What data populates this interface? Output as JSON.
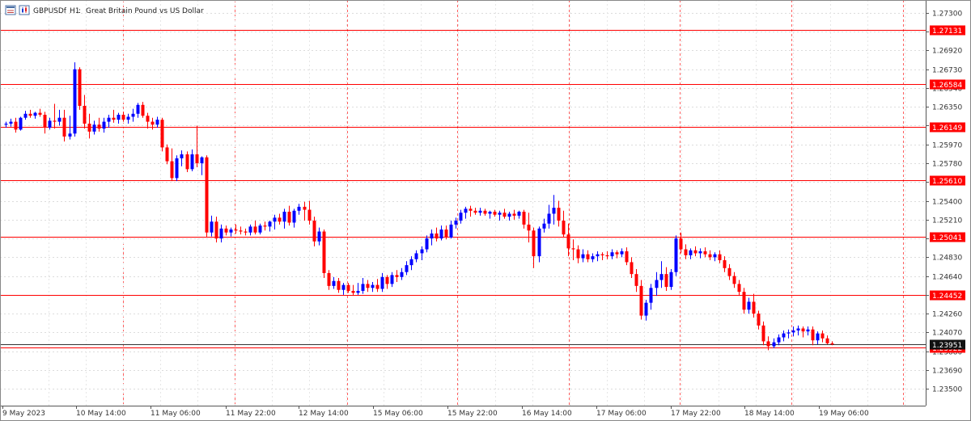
{
  "header": {
    "symbol": "GBPUSDf",
    "timeframe": "H1",
    "description": "Great Britain Pound vs US Dollar"
  },
  "chart_data": {
    "type": "candlestick",
    "ylim": [
      1.2333,
      1.2743
    ],
    "y_ticks": [
      "1.27300",
      "1.27110",
      "1.26920",
      "1.26730",
      "1.26540",
      "1.26350",
      "1.26160",
      "1.25970",
      "1.25780",
      "1.25590",
      "1.25400",
      "1.25210",
      "1.25020",
      "1.24830",
      "1.24640",
      "1.24450",
      "1.24260",
      "1.24070",
      "1.23880",
      "1.23690",
      "1.23500"
    ],
    "x_ticks": [
      "9 May 2023",
      "10 May 14:00",
      "11 May 06:00",
      "11 May 22:00",
      "12 May 14:00",
      "15 May 06:00",
      "15 May 22:00",
      "16 May 14:00",
      "17 May 06:00",
      "17 May 22:00",
      "18 May 14:00",
      "19 May 06:00"
    ],
    "horizontal_lines": [
      {
        "price": 1.27131,
        "label": "1.27131"
      },
      {
        "price": 1.26584,
        "label": "1.26584"
      },
      {
        "price": 1.26149,
        "label": "1.26149"
      },
      {
        "price": 1.2561,
        "label": "1.25610"
      },
      {
        "price": 1.25041,
        "label": "1.25041"
      },
      {
        "price": 1.24452,
        "label": "1.24452"
      },
      {
        "price": 1.23922,
        "label": "1.23922"
      }
    ],
    "current_price": {
      "price": 1.23951,
      "label": "1.23951"
    },
    "up_color": "#0000ff",
    "down_color": "#ff0000",
    "line_color": "#ff0000",
    "grid": true,
    "candles": [
      [
        1.2617,
        1.262,
        1.2614,
        1.2618
      ],
      [
        1.2618,
        1.2623,
        1.2615,
        1.262
      ],
      [
        1.262,
        1.2624,
        1.2609,
        1.2612
      ],
      [
        1.2612,
        1.2625,
        1.2611,
        1.2624
      ],
      [
        1.2624,
        1.2631,
        1.2622,
        1.2628
      ],
      [
        1.2628,
        1.2632,
        1.2624,
        1.2626
      ],
      [
        1.2626,
        1.263,
        1.2623,
        1.2629
      ],
      [
        1.2629,
        1.2633,
        1.2625,
        1.2627
      ],
      [
        1.2627,
        1.263,
        1.2608,
        1.2614
      ],
      [
        1.2614,
        1.2624,
        1.2612,
        1.2621
      ],
      [
        1.2621,
        1.2638,
        1.2613,
        1.262
      ],
      [
        1.262,
        1.2632,
        1.2616,
        1.2624
      ],
      [
        1.2624,
        1.2632,
        1.26,
        1.2605
      ],
      [
        1.2605,
        1.2626,
        1.2602,
        1.2608
      ],
      [
        1.2608,
        1.268,
        1.2605,
        1.2673
      ],
      [
        1.2673,
        1.2675,
        1.2632,
        1.2636
      ],
      [
        1.2636,
        1.2647,
        1.2613,
        1.2618
      ],
      [
        1.2618,
        1.2628,
        1.2603,
        1.261
      ],
      [
        1.261,
        1.2621,
        1.2607,
        1.2617
      ],
      [
        1.2617,
        1.2624,
        1.261,
        1.2613
      ],
      [
        1.2613,
        1.2624,
        1.2609,
        1.262
      ],
      [
        1.262,
        1.2627,
        1.2614,
        1.2624
      ],
      [
        1.2624,
        1.2632,
        1.2619,
        1.2622
      ],
      [
        1.2622,
        1.2629,
        1.2618,
        1.2627
      ],
      [
        1.2627,
        1.263,
        1.262,
        1.2622
      ],
      [
        1.2622,
        1.2628,
        1.2618,
        1.2625
      ],
      [
        1.2625,
        1.2633,
        1.262,
        1.2628
      ],
      [
        1.2628,
        1.2639,
        1.2624,
        1.2637
      ],
      [
        1.2637,
        1.264,
        1.2624,
        1.2626
      ],
      [
        1.2626,
        1.2629,
        1.2613,
        1.262
      ],
      [
        1.262,
        1.2624,
        1.2612,
        1.2617
      ],
      [
        1.2617,
        1.2625,
        1.2614,
        1.2622
      ],
      [
        1.2622,
        1.2624,
        1.259,
        1.2594
      ],
      [
        1.2594,
        1.2597,
        1.2577,
        1.258
      ],
      [
        1.258,
        1.2593,
        1.256,
        1.2563
      ],
      [
        1.2563,
        1.2586,
        1.256,
        1.2583
      ],
      [
        1.2583,
        1.2591,
        1.2575,
        1.2587
      ],
      [
        1.2587,
        1.259,
        1.2569,
        1.2572
      ],
      [
        1.2572,
        1.2592,
        1.257,
        1.2587
      ],
      [
        1.2587,
        1.2616,
        1.2574,
        1.2578
      ],
      [
        1.2578,
        1.2585,
        1.2566,
        1.2584
      ],
      [
        1.2584,
        1.2586,
        1.2503,
        1.2508
      ],
      [
        1.2508,
        1.2525,
        1.2504,
        1.2519
      ],
      [
        1.2519,
        1.2524,
        1.2498,
        1.2502
      ],
      [
        1.2502,
        1.2516,
        1.2498,
        1.2512
      ],
      [
        1.2512,
        1.2515,
        1.2505,
        1.2508
      ],
      [
        1.2508,
        1.2513,
        1.2504,
        1.2511
      ],
      [
        1.2511,
        1.2516,
        1.2507,
        1.251
      ],
      [
        1.251,
        1.2514,
        1.2506,
        1.2509
      ],
      [
        1.2509,
        1.2512,
        1.2505,
        1.2508
      ],
      [
        1.2508,
        1.2516,
        1.2505,
        1.2514
      ],
      [
        1.2514,
        1.252,
        1.2506,
        1.2508
      ],
      [
        1.2508,
        1.2517,
        1.2506,
        1.2515
      ],
      [
        1.2515,
        1.2519,
        1.251,
        1.2514
      ],
      [
        1.2514,
        1.252,
        1.2509,
        1.2519
      ],
      [
        1.2519,
        1.2526,
        1.2511,
        1.2523
      ],
      [
        1.2523,
        1.2527,
        1.2516,
        1.2519
      ],
      [
        1.2519,
        1.2532,
        1.2512,
        1.2529
      ],
      [
        1.2529,
        1.2535,
        1.2515,
        1.2518
      ],
      [
        1.2518,
        1.2532,
        1.2513,
        1.253
      ],
      [
        1.253,
        1.2537,
        1.2526,
        1.2534
      ],
      [
        1.2534,
        1.2539,
        1.252,
        1.2531
      ],
      [
        1.2531,
        1.254,
        1.2516,
        1.252
      ],
      [
        1.252,
        1.2524,
        1.2494,
        1.2499
      ],
      [
        1.2499,
        1.2513,
        1.2495,
        1.2509
      ],
      [
        1.2509,
        1.2511,
        1.2462,
        1.2467
      ],
      [
        1.2467,
        1.247,
        1.245,
        1.2454
      ],
      [
        1.2454,
        1.2463,
        1.2451,
        1.2459
      ],
      [
        1.2459,
        1.2462,
        1.2447,
        1.245
      ],
      [
        1.245,
        1.2457,
        1.2445,
        1.2455
      ],
      [
        1.2455,
        1.2457,
        1.2447,
        1.2449
      ],
      [
        1.2449,
        1.2455,
        1.2444,
        1.2447
      ],
      [
        1.2447,
        1.2457,
        1.2445,
        1.2449
      ],
      [
        1.2449,
        1.2462,
        1.2446,
        1.2456
      ],
      [
        1.2456,
        1.246,
        1.2448,
        1.2452
      ],
      [
        1.2452,
        1.2458,
        1.2448,
        1.2455
      ],
      [
        1.2455,
        1.2461,
        1.2448,
        1.2451
      ],
      [
        1.2451,
        1.2467,
        1.2448,
        1.2463
      ],
      [
        1.2463,
        1.2465,
        1.2451,
        1.2456
      ],
      [
        1.2456,
        1.2468,
        1.2453,
        1.2465
      ],
      [
        1.2465,
        1.247,
        1.2458,
        1.2463
      ],
      [
        1.2463,
        1.2472,
        1.246,
        1.2468
      ],
      [
        1.2468,
        1.2479,
        1.2465,
        1.2475
      ],
      [
        1.2475,
        1.2484,
        1.247,
        1.2481
      ],
      [
        1.2481,
        1.249,
        1.2478,
        1.2487
      ],
      [
        1.2487,
        1.2494,
        1.248,
        1.2491
      ],
      [
        1.2491,
        1.2505,
        1.2488,
        1.2502
      ],
      [
        1.2502,
        1.2511,
        1.2495,
        1.2507
      ],
      [
        1.2507,
        1.2513,
        1.2499,
        1.2502
      ],
      [
        1.2502,
        1.2515,
        1.25,
        1.2511
      ],
      [
        1.2511,
        1.2515,
        1.2501,
        1.2503
      ],
      [
        1.2503,
        1.252,
        1.2502,
        1.2516
      ],
      [
        1.2516,
        1.2523,
        1.2512,
        1.252
      ],
      [
        1.252,
        1.2531,
        1.2517,
        1.2528
      ],
      [
        1.2528,
        1.2534,
        1.2522,
        1.2532
      ],
      [
        1.2532,
        1.2535,
        1.2524,
        1.253
      ],
      [
        1.253,
        1.2533,
        1.2526,
        1.2528
      ],
      [
        1.2528,
        1.2533,
        1.2525,
        1.253
      ],
      [
        1.253,
        1.2532,
        1.2525,
        1.2527
      ],
      [
        1.2527,
        1.253,
        1.2522,
        1.2529
      ],
      [
        1.2529,
        1.2531,
        1.2524,
        1.2526
      ],
      [
        1.2526,
        1.253,
        1.252,
        1.2528
      ],
      [
        1.2528,
        1.2532,
        1.2522,
        1.2524
      ],
      [
        1.2524,
        1.2529,
        1.252,
        1.2527
      ],
      [
        1.2527,
        1.2531,
        1.2521,
        1.2525
      ],
      [
        1.2525,
        1.253,
        1.2522,
        1.2529
      ],
      [
        1.2529,
        1.2531,
        1.2512,
        1.2516
      ],
      [
        1.2516,
        1.2528,
        1.2498,
        1.251
      ],
      [
        1.251,
        1.2513,
        1.2472,
        1.2484
      ],
      [
        1.2484,
        1.2514,
        1.2478,
        1.2512
      ],
      [
        1.2512,
        1.2522,
        1.2508,
        1.2517
      ],
      [
        1.2517,
        1.2536,
        1.2512,
        1.2527
      ],
      [
        1.2527,
        1.2546,
        1.2516,
        1.2533
      ],
      [
        1.2533,
        1.254,
        1.2514,
        1.252
      ],
      [
        1.252,
        1.253,
        1.2503,
        1.2506
      ],
      [
        1.2506,
        1.2517,
        1.2484,
        1.2492
      ],
      [
        1.2492,
        1.2501,
        1.248,
        1.2491
      ],
      [
        1.2491,
        1.2495,
        1.2477,
        1.2482
      ],
      [
        1.2482,
        1.2491,
        1.2478,
        1.2486
      ],
      [
        1.2486,
        1.249,
        1.2478,
        1.2481
      ],
      [
        1.2481,
        1.2487,
        1.2478,
        1.2484
      ],
      [
        1.2484,
        1.2489,
        1.2479,
        1.2486
      ],
      [
        1.2486,
        1.2488,
        1.248,
        1.2485
      ],
      [
        1.2485,
        1.2489,
        1.2481,
        1.2484
      ],
      [
        1.2484,
        1.2491,
        1.2481,
        1.2488
      ],
      [
        1.2488,
        1.249,
        1.2482,
        1.2486
      ],
      [
        1.2486,
        1.2492,
        1.2483,
        1.2489
      ],
      [
        1.2489,
        1.2493,
        1.2475,
        1.2478
      ],
      [
        1.2478,
        1.2483,
        1.2462,
        1.2466
      ],
      [
        1.2466,
        1.2471,
        1.2448,
        1.2454
      ],
      [
        1.2454,
        1.246,
        1.242,
        1.2424
      ],
      [
        1.2424,
        1.244,
        1.2419,
        1.2437
      ],
      [
        1.2437,
        1.2456,
        1.243,
        1.2452
      ],
      [
        1.2452,
        1.2468,
        1.2444,
        1.246
      ],
      [
        1.246,
        1.2479,
        1.2452,
        1.2466
      ],
      [
        1.2466,
        1.2473,
        1.2449,
        1.2453
      ],
      [
        1.2453,
        1.2471,
        1.245,
        1.2468
      ],
      [
        1.2468,
        1.2505,
        1.2464,
        1.2502
      ],
      [
        1.2502,
        1.2508,
        1.2487,
        1.2491
      ],
      [
        1.2491,
        1.2496,
        1.2481,
        1.2485
      ],
      [
        1.2485,
        1.2492,
        1.2481,
        1.249
      ],
      [
        1.249,
        1.2494,
        1.2484,
        1.2487
      ],
      [
        1.2487,
        1.2492,
        1.2482,
        1.2489
      ],
      [
        1.2489,
        1.2493,
        1.2483,
        1.2486
      ],
      [
        1.2486,
        1.249,
        1.248,
        1.2483
      ],
      [
        1.2483,
        1.2488,
        1.2479,
        1.2486
      ],
      [
        1.2486,
        1.249,
        1.2477,
        1.248
      ],
      [
        1.248,
        1.2484,
        1.2468,
        1.2472
      ],
      [
        1.2472,
        1.2476,
        1.246,
        1.2464
      ],
      [
        1.2464,
        1.2468,
        1.2452,
        1.2456
      ],
      [
        1.2456,
        1.246,
        1.2444,
        1.2448
      ],
      [
        1.2448,
        1.2452,
        1.2426,
        1.243
      ],
      [
        1.243,
        1.2442,
        1.2426,
        1.2438
      ],
      [
        1.2438,
        1.2446,
        1.2422,
        1.2426
      ],
      [
        1.2426,
        1.2429,
        1.241,
        1.2414
      ],
      [
        1.2414,
        1.2418,
        1.2394,
        1.2398
      ],
      [
        1.2398,
        1.2403,
        1.2389,
        1.2393
      ],
      [
        1.2393,
        1.2401,
        1.2391,
        1.2397
      ],
      [
        1.2397,
        1.2405,
        1.2394,
        1.2402
      ],
      [
        1.2402,
        1.2409,
        1.2398,
        1.2406
      ],
      [
        1.2406,
        1.241,
        1.2401,
        1.2407
      ],
      [
        1.2407,
        1.2413,
        1.2403,
        1.2409
      ],
      [
        1.2409,
        1.2414,
        1.2404,
        1.2411
      ],
      [
        1.2411,
        1.2413,
        1.2402,
        1.2408
      ],
      [
        1.2408,
        1.2413,
        1.2404,
        1.241
      ],
      [
        1.241,
        1.2413,
        1.2394,
        1.2399
      ],
      [
        1.2399,
        1.2408,
        1.2395,
        1.2406
      ],
      [
        1.2406,
        1.2409,
        1.2397,
        1.2401
      ],
      [
        1.2401,
        1.2404,
        1.2395,
        1.2396
      ],
      [
        1.2396,
        1.2398,
        1.2394,
        1.2395
      ]
    ]
  },
  "toolbar": {
    "icons": [
      "chart-window-icon",
      "chart-type-icon"
    ]
  }
}
